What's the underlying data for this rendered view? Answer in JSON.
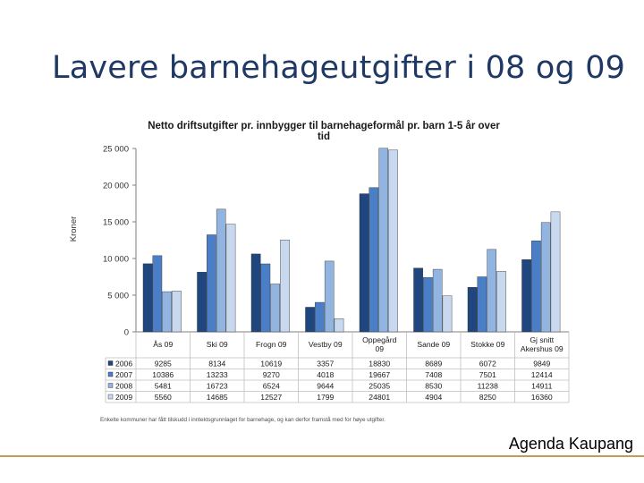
{
  "slide": {
    "title": "Lavere barnehageutgifter i 08 og 09",
    "footer": "Agenda Kaupang"
  },
  "colors": {
    "title": "#1f3864",
    "footer_rule": "#c89a58",
    "series": [
      "#1f467f",
      "#4a7fc8",
      "#92b4e0",
      "#c7d8ef"
    ]
  },
  "chart_data": {
    "type": "bar",
    "title": "Netto driftsutgifter pr. innbygger til barnehageformål pr. barn 1-5 år over tid",
    "title_lines": [
      "Netto driftsutgifter pr. innbygger til barnehageformål pr. barn 1-5 år over",
      "tid"
    ],
    "ylabel": "Kroner",
    "ylim": [
      0,
      25000
    ],
    "yticks": [
      0,
      5000,
      10000,
      15000,
      20000,
      25000
    ],
    "ytick_labels": [
      "0",
      "5 000",
      "10 000",
      "15 000",
      "20 000",
      "25 000"
    ],
    "categories": [
      "Ås 09",
      "Ski 09",
      "Frogn 09",
      "Vestby 09",
      "Oppegård 09",
      "Sande 09",
      "Stokke 09",
      "Gj snitt Akershus 09"
    ],
    "category_lines": [
      [
        "Ås 09"
      ],
      [
        "Ski 09"
      ],
      [
        "Frogn 09"
      ],
      [
        "Vestby 09"
      ],
      [
        "Oppegård",
        "09"
      ],
      [
        "Sande 09"
      ],
      [
        "Stokke 09"
      ],
      [
        "Gj snitt",
        "Akershus 09"
      ]
    ],
    "series": [
      {
        "name": "2006",
        "values": [
          9285,
          8134,
          10619,
          3357,
          18830,
          8689,
          6072,
          9849
        ]
      },
      {
        "name": "2007",
        "values": [
          10386,
          13233,
          9270,
          4018,
          19667,
          7408,
          7501,
          12414
        ]
      },
      {
        "name": "2008",
        "values": [
          5481,
          16723,
          6524,
          9644,
          25035,
          8530,
          11238,
          14911
        ]
      },
      {
        "name": "2009",
        "values": [
          5560,
          14685,
          12527,
          1799,
          24801,
          4904,
          8250,
          16360
        ]
      }
    ],
    "grid": false,
    "legend": "data-table",
    "footnote": "Enkelte kommuner har fått tilskudd i inntektsgrunnlaget for barnehage, og kan derfor framstå med for høye utgifter."
  }
}
